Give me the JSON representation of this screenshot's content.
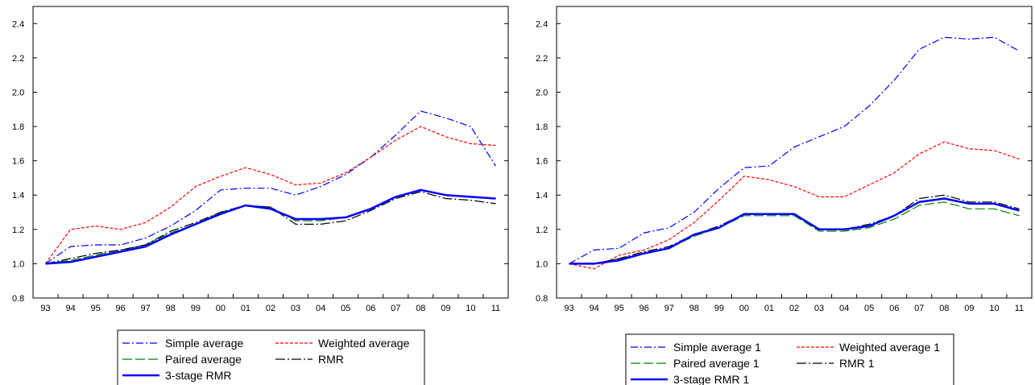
{
  "chart_data": [
    {
      "type": "line",
      "title": "",
      "xlabel": "",
      "ylabel": "",
      "categories": [
        "93",
        "94",
        "95",
        "96",
        "97",
        "98",
        "99",
        "00",
        "01",
        "02",
        "03",
        "04",
        "05",
        "06",
        "07",
        "08",
        "09",
        "10",
        "11"
      ],
      "ylim": [
        0.8,
        2.5
      ],
      "yticks": [
        "0.8",
        "1.0",
        "1.2",
        "1.4",
        "1.6",
        "1.8",
        "2.0",
        "2.2",
        "2.4"
      ],
      "grid": false,
      "legend_position": "bottom",
      "series": [
        {
          "name": "Simple average",
          "color": "#0000ff",
          "style": "dash-dot",
          "values": [
            1.0,
            1.1,
            1.11,
            1.11,
            1.15,
            1.22,
            1.31,
            1.43,
            1.44,
            1.44,
            1.4,
            1.45,
            1.52,
            1.62,
            1.75,
            1.89,
            1.85,
            1.8,
            1.57
          ]
        },
        {
          "name": "Weighted average",
          "color": "#ff0000",
          "style": "dash",
          "values": [
            1.0,
            1.2,
            1.22,
            1.2,
            1.24,
            1.33,
            1.45,
            1.51,
            1.56,
            1.52,
            1.46,
            1.47,
            1.53,
            1.62,
            1.72,
            1.8,
            1.74,
            1.7,
            1.69
          ]
        },
        {
          "name": "Paired average",
          "color": "#008000",
          "style": "long-dash",
          "values": [
            1.0,
            1.02,
            1.05,
            1.08,
            1.11,
            1.18,
            1.23,
            1.3,
            1.34,
            1.33,
            1.25,
            1.25,
            1.27,
            1.32,
            1.39,
            1.43,
            1.4,
            1.39,
            1.38
          ]
        },
        {
          "name": "RMR",
          "color": "#000000",
          "style": "long-dash-dot",
          "values": [
            1.0,
            1.03,
            1.06,
            1.08,
            1.11,
            1.19,
            1.24,
            1.3,
            1.34,
            1.33,
            1.23,
            1.23,
            1.25,
            1.31,
            1.38,
            1.42,
            1.38,
            1.37,
            1.35
          ]
        },
        {
          "name": "3-stage RMR",
          "color": "#0000ff",
          "style": "solid-thick",
          "values": [
            1.0,
            1.01,
            1.04,
            1.07,
            1.1,
            1.17,
            1.23,
            1.29,
            1.34,
            1.32,
            1.26,
            1.26,
            1.27,
            1.32,
            1.39,
            1.43,
            1.4,
            1.39,
            1.38
          ]
        }
      ]
    },
    {
      "type": "line",
      "title": "",
      "xlabel": "",
      "ylabel": "",
      "categories": [
        "93",
        "94",
        "95",
        "96",
        "97",
        "98",
        "99",
        "00",
        "01",
        "02",
        "03",
        "04",
        "05",
        "06",
        "07",
        "08",
        "09",
        "10",
        "11"
      ],
      "ylim": [
        0.8,
        2.5
      ],
      "yticks": [
        "0.8",
        "1.0",
        "1.2",
        "1.4",
        "1.6",
        "1.8",
        "2.0",
        "2.2",
        "2.4"
      ],
      "grid": false,
      "legend_position": "bottom",
      "series": [
        {
          "name": "Simple average 1",
          "color": "#0000ff",
          "style": "dash-dot",
          "values": [
            1.0,
            1.08,
            1.09,
            1.18,
            1.21,
            1.3,
            1.44,
            1.56,
            1.57,
            1.68,
            1.74,
            1.8,
            1.92,
            2.07,
            2.25,
            2.32,
            2.31,
            2.32,
            2.24
          ]
        },
        {
          "name": "Weighted average 1",
          "color": "#ff0000",
          "style": "dash",
          "values": [
            1.0,
            0.97,
            1.05,
            1.08,
            1.14,
            1.24,
            1.37,
            1.51,
            1.49,
            1.45,
            1.39,
            1.39,
            1.46,
            1.53,
            1.64,
            1.71,
            1.67,
            1.66,
            1.61
          ]
        },
        {
          "name": "Paired average 1",
          "color": "#008000",
          "style": "long-dash",
          "values": [
            1.0,
            1.0,
            1.03,
            1.06,
            1.09,
            1.16,
            1.21,
            1.28,
            1.28,
            1.28,
            1.19,
            1.19,
            1.21,
            1.26,
            1.34,
            1.36,
            1.32,
            1.32,
            1.28
          ]
        },
        {
          "name": "RMR 1",
          "color": "#000000",
          "style": "long-dash-dot",
          "values": [
            1.0,
            1.0,
            1.03,
            1.07,
            1.1,
            1.17,
            1.22,
            1.29,
            1.29,
            1.29,
            1.2,
            1.2,
            1.23,
            1.28,
            1.38,
            1.4,
            1.36,
            1.36,
            1.32
          ]
        },
        {
          "name": "3-stage RMR 1",
          "color": "#0000ff",
          "style": "solid-thick",
          "values": [
            1.0,
            1.0,
            1.02,
            1.06,
            1.09,
            1.17,
            1.21,
            1.29,
            1.29,
            1.29,
            1.2,
            1.2,
            1.22,
            1.28,
            1.36,
            1.38,
            1.35,
            1.35,
            1.31
          ]
        }
      ]
    }
  ]
}
